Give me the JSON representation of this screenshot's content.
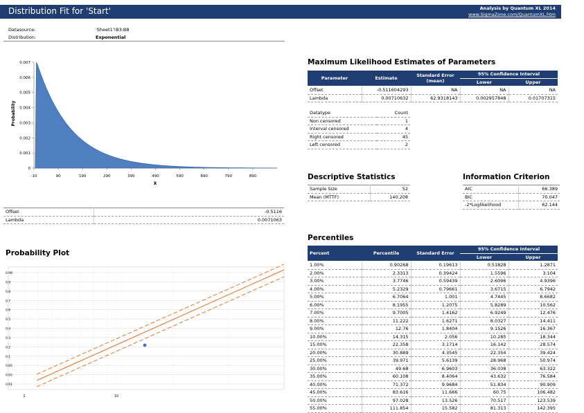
{
  "header": {
    "title": "Distribution Fit for 'Start'",
    "analysis_by": "Analysis by Quantum XL 2014",
    "url": "www.SigmaZone.com/QuantumXL.htm"
  },
  "info": {
    "datasource_label": "Datasource:",
    "datasource_value": "'Sheet1'!B3:B8",
    "distribution_label": "Distribution:",
    "distribution_value": "Exponential"
  },
  "pdf_chart": {
    "chart_data": {
      "type": "area",
      "ylabel": "Probability",
      "xlabel": "X",
      "x_ticks": [
        "-10",
        "90",
        "190",
        "290",
        "390",
        "490",
        "590",
        "690",
        "790",
        "890"
      ],
      "y_ticks": [
        "0",
        "0.001",
        "0.002",
        "0.003",
        "0.004",
        "0.005",
        "0.006",
        "0.007"
      ],
      "xlim": [
        -10,
        990
      ],
      "ylim": [
        0,
        0.007
      ],
      "series": [
        {
          "offset": -0.5116,
          "lambda": 0.0071063
        }
      ],
      "fill_color": "#4f7fbf"
    }
  },
  "params_small": [
    {
      "name": "Offset",
      "value": "-0.5116"
    },
    {
      "name": "Lambda",
      "value": "0.0071063"
    }
  ],
  "mle": {
    "title": "Maximum Likelihood Estimates of Parameters",
    "headers": {
      "parameter": "Parameter",
      "estimate": "Estimate",
      "std_error": "Standard Error (mean)",
      "ci": "95% Confidence Interval",
      "lower": "Lower",
      "upper": "Upper"
    },
    "rows": [
      {
        "name": "Offset",
        "estimate": "-0.511604293",
        "se": "NA",
        "lower": "NA",
        "upper": "NA"
      },
      {
        "name": "Lambda",
        "estimate": "0.00710632",
        "se": "62.9318143",
        "lower": "0.002957848",
        "upper": "0.01707315"
      }
    ]
  },
  "datatype": {
    "headers": {
      "type": "Datatype",
      "count": "Count"
    },
    "rows": [
      {
        "type": "Non censored",
        "count": "1"
      },
      {
        "type": "Interval censored",
        "count": "4"
      },
      {
        "type": "Right censored",
        "count": "45"
      },
      {
        "type": "Left censored",
        "count": "2"
      }
    ]
  },
  "descriptive": {
    "title": "Descriptive Statistics",
    "rows": [
      {
        "label": "Sample Size",
        "value": "52"
      },
      {
        "label": "Mean (MTTF)",
        "value": "140.208"
      }
    ]
  },
  "information": {
    "title": "Information Criterion",
    "rows": [
      {
        "label": "AIC",
        "value": "66.389"
      },
      {
        "label": "BIC",
        "value": "70.047"
      },
      {
        "label": "-2*Loglikelihood",
        "value": "62.144"
      }
    ]
  },
  "probability_plot": {
    "title": "Probability Plot",
    "chart_data": {
      "type": "line",
      "y_ticks": [
        "0.99",
        "0.9",
        "0.8",
        "0.7",
        "0.6",
        "0.5",
        "0.4",
        "0.3",
        "0.2",
        "0.1",
        "0.05",
        "0.02",
        "0.01"
      ],
      "x_ticks": [
        "1",
        "10"
      ],
      "line_color": "#e8762d",
      "point_color": "#4472c4"
    }
  },
  "percentiles": {
    "title": "Percentiles",
    "headers": {
      "percent": "Percent",
      "percentile": "Percentile",
      "std_error": "Standard Error",
      "ci": "95% Confidence Interval",
      "lower": "Lower",
      "upper": "Upper"
    },
    "rows": [
      [
        "1.00%",
        "0.90268",
        "0.19613",
        "0.51828",
        "1.2871"
      ],
      [
        "2.00%",
        "2.3313",
        "0.39424",
        "1.5596",
        "3.104"
      ],
      [
        "3.00%",
        "3.7746",
        "0.59439",
        "2.6096",
        "4.9396"
      ],
      [
        "4.00%",
        "5.2329",
        "0.79661",
        "3.6715",
        "6.7942"
      ],
      [
        "5.00%",
        "6.7064",
        "1.001",
        "4.7445",
        "8.6682"
      ],
      [
        "6.00%",
        "8.1955",
        "1.2075",
        "5.8289",
        "10.562"
      ],
      [
        "7.00%",
        "9.7005",
        "1.4162",
        "6.9249",
        "12.476"
      ],
      [
        "8.00%",
        "11.222",
        "1.6271",
        "8.0327",
        "14.411"
      ],
      [
        "9.00%",
        "12.76",
        "1.8404",
        "9.1526",
        "16.367"
      ],
      [
        "10.00%",
        "14.315",
        "2.056",
        "10.285",
        "18.344"
      ],
      [
        "15.00%",
        "22.358",
        "3.1714",
        "16.142",
        "28.574"
      ],
      [
        "20.00%",
        "30.889",
        "4.3545",
        "22.354",
        "39.424"
      ],
      [
        "25.00%",
        "39.971",
        "5.6139",
        "28.968",
        "50.974"
      ],
      [
        "30.00%",
        "49.68",
        "6.9603",
        "36.038",
        "63.322"
      ],
      [
        "35.00%",
        "60.108",
        "8.4064",
        "43.632",
        "76.584"
      ],
      [
        "40.00%",
        "71.372",
        "9.9684",
        "51.834",
        "90.909"
      ],
      [
        "45.00%",
        "83.616",
        "11.666",
        "60.75",
        "106.482"
      ],
      [
        "50.00%",
        "97.028",
        "13.526",
        "70.517",
        "123.539"
      ],
      [
        "55.00%",
        "111.854",
        "15.582",
        "81.313",
        "142.395"
      ]
    ]
  }
}
